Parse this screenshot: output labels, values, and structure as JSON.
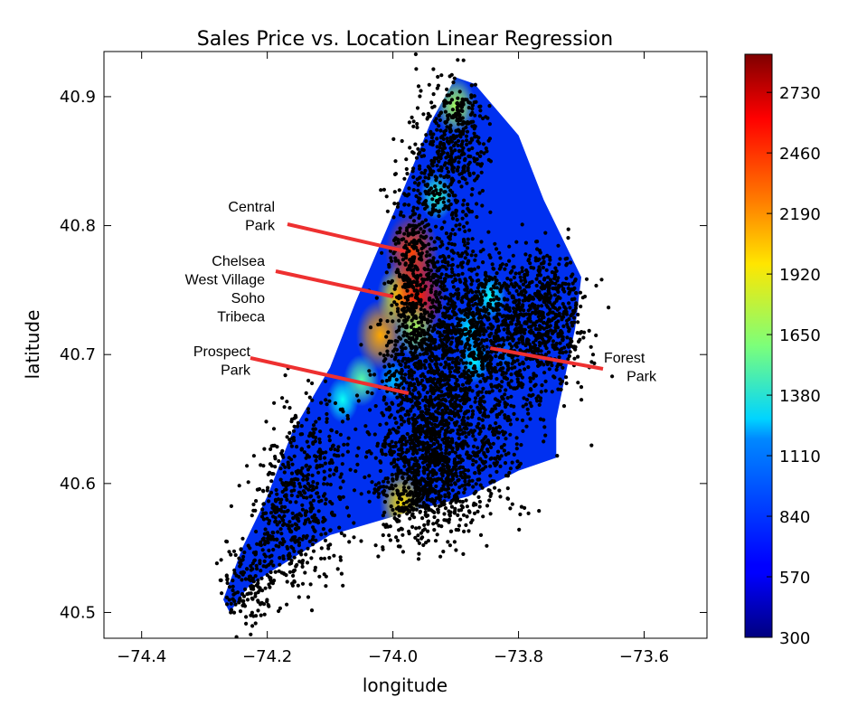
{
  "chart_data": {
    "type": "heatmap",
    "title": "Sales Price vs. Location Linear Regression",
    "xlabel": "longitude",
    "ylabel": "latitude",
    "xlim": [
      -74.46,
      -73.5
    ],
    "ylim": [
      40.48,
      40.935
    ],
    "xticks": [
      -74.4,
      -74.2,
      -74.0,
      -73.8,
      -73.6
    ],
    "xtick_labels": [
      "−74.4",
      "−74.2",
      "−74.0",
      "−73.8",
      "−73.6"
    ],
    "yticks": [
      40.5,
      40.6,
      40.7,
      40.8,
      40.9
    ],
    "ytick_labels": [
      "40.5",
      "40.6",
      "40.7",
      "40.8",
      "40.9"
    ],
    "colorbar": {
      "vmin": 300,
      "vmax": 2900,
      "ticks": [
        300,
        570,
        840,
        1110,
        1380,
        1650,
        1920,
        2190,
        2460,
        2730
      ],
      "tick_labels": [
        "300",
        "570",
        "840",
        "1110",
        "1380",
        "1650",
        "1920",
        "2190",
        "2460",
        "2730"
      ],
      "colormap": "jet"
    },
    "region_outline": [
      [
        -74.26,
        40.5
      ],
      [
        -74.23,
        40.52
      ],
      [
        -74.2,
        40.53
      ],
      [
        -74.1,
        40.56
      ],
      [
        -73.96,
        40.58
      ],
      [
        -73.88,
        40.59
      ],
      [
        -73.8,
        40.61
      ],
      [
        -73.74,
        40.62
      ],
      [
        -73.74,
        40.65
      ],
      [
        -73.71,
        40.72
      ],
      [
        -73.7,
        40.76
      ],
      [
        -73.76,
        40.82
      ],
      [
        -73.8,
        40.87
      ],
      [
        -73.87,
        40.91
      ],
      [
        -73.9,
        40.915
      ],
      [
        -73.94,
        40.88
      ],
      [
        -73.99,
        40.82
      ],
      [
        -74.06,
        40.74
      ],
      [
        -74.1,
        40.69
      ],
      [
        -74.16,
        40.64
      ],
      [
        -74.2,
        40.59
      ],
      [
        -74.24,
        40.55
      ],
      [
        -74.27,
        40.51
      ]
    ],
    "hotspots": [
      {
        "lon": -74.02,
        "lat": 40.715,
        "value": 2150
      },
      {
        "lon": -73.99,
        "lat": 40.745,
        "value": 1950
      },
      {
        "lon": -73.97,
        "lat": 40.78,
        "value": 2400
      },
      {
        "lon": -73.96,
        "lat": 40.745,
        "value": 2500
      },
      {
        "lon": -73.965,
        "lat": 40.72,
        "value": 1700
      },
      {
        "lon": -73.9,
        "lat": 40.893,
        "value": 1700
      },
      {
        "lon": -73.93,
        "lat": 40.823,
        "value": 1400
      },
      {
        "lon": -73.845,
        "lat": 40.745,
        "value": 1300
      },
      {
        "lon": -73.88,
        "lat": 40.72,
        "value": 1200
      },
      {
        "lon": -73.985,
        "lat": 40.585,
        "value": 2000
      },
      {
        "lon": -73.87,
        "lat": 40.695,
        "value": 1250
      },
      {
        "lon": -74.05,
        "lat": 40.68,
        "value": 1500
      },
      {
        "lon": -74.08,
        "lat": 40.665,
        "value": 1300
      },
      {
        "lon": -73.82,
        "lat": 40.7,
        "value": 900
      },
      {
        "lon": -74.0,
        "lat": 40.68,
        "value": 1100
      }
    ],
    "scatter_clusters": [
      {
        "lon": -73.92,
        "lat": 40.83,
        "slon": 0.03,
        "slat": 0.04,
        "n": 380
      },
      {
        "lon": -73.89,
        "lat": 40.87,
        "slon": 0.02,
        "slat": 0.02,
        "n": 200
      },
      {
        "lon": -73.97,
        "lat": 40.76,
        "slon": 0.02,
        "slat": 0.04,
        "n": 350
      },
      {
        "lon": -73.9,
        "lat": 40.73,
        "slon": 0.05,
        "slat": 0.03,
        "n": 600
      },
      {
        "lon": -73.8,
        "lat": 40.72,
        "slon": 0.05,
        "slat": 0.03,
        "n": 700
      },
      {
        "lon": -73.75,
        "lat": 40.74,
        "slon": 0.025,
        "slat": 0.02,
        "n": 250
      },
      {
        "lon": -73.95,
        "lat": 40.66,
        "slon": 0.04,
        "slat": 0.04,
        "n": 700
      },
      {
        "lon": -73.88,
        "lat": 40.64,
        "slon": 0.05,
        "slat": 0.035,
        "n": 600
      },
      {
        "lon": -73.95,
        "lat": 40.6,
        "slon": 0.04,
        "slat": 0.025,
        "n": 500
      },
      {
        "lon": -74.13,
        "lat": 40.61,
        "slon": 0.04,
        "slat": 0.03,
        "n": 330
      },
      {
        "lon": -74.17,
        "lat": 40.56,
        "slon": 0.04,
        "slat": 0.025,
        "n": 260
      },
      {
        "lon": -74.23,
        "lat": 40.52,
        "slon": 0.02,
        "slat": 0.015,
        "n": 130
      }
    ],
    "annotations": [
      {
        "lines": [
          "Central",
          "Park"
        ],
        "target": {
          "lon": -73.98,
          "lat": 40.78
        }
      },
      {
        "lines": [
          "Chelsea",
          "West Village",
          "Soho",
          "Tribeca"
        ],
        "target": {
          "lon": -74.0,
          "lat": 40.745
        }
      },
      {
        "lines": [
          "Prospect",
          "Park"
        ],
        "target": {
          "lon": -73.975,
          "lat": 40.67
        }
      },
      {
        "lines": [
          "Forest",
          "Park"
        ],
        "target": {
          "lon": -73.845,
          "lat": 40.705
        }
      }
    ]
  }
}
